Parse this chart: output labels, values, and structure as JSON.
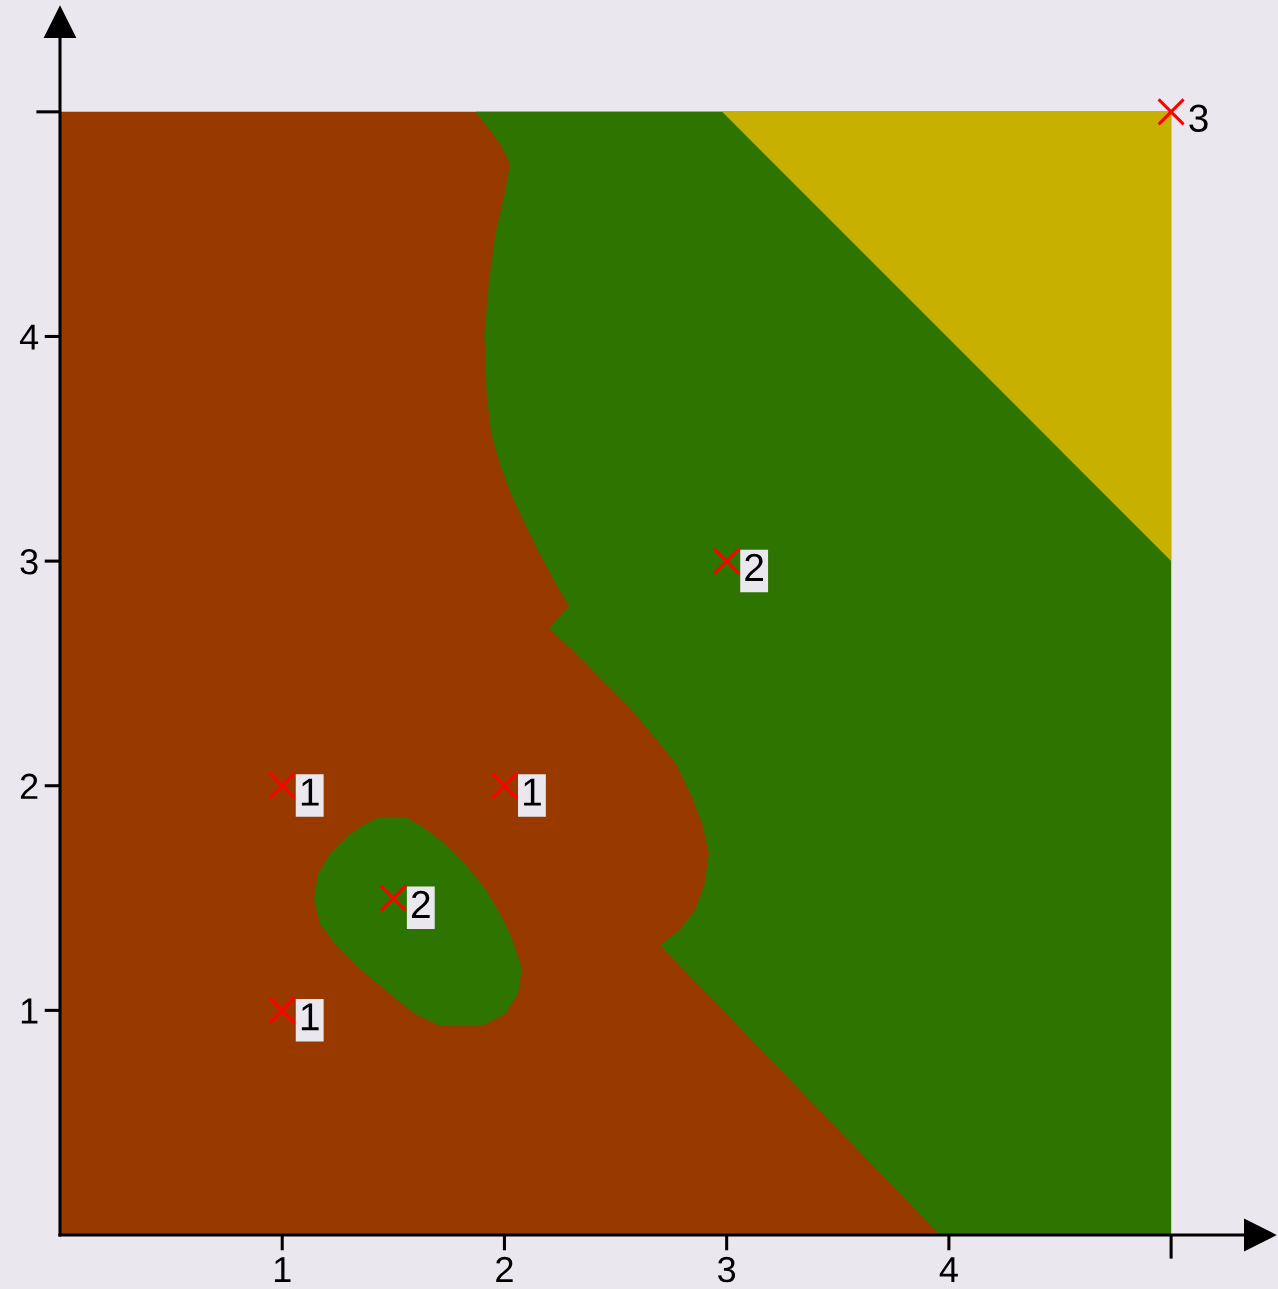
{
  "chart_data": {
    "type": "scatter",
    "x": [
      1,
      2,
      1,
      1.5,
      3,
      5
    ],
    "series": [
      {
        "values": [
          2,
          2,
          1,
          1.5,
          3,
          5
        ],
        "color": "#ff0000"
      }
    ],
    "marker": "cross",
    "xlim": [
      0,
      5.4
    ],
    "ylim": [
      0,
      5.4
    ],
    "xticks": [
      1,
      2,
      3,
      4,
      {
        "value": 5,
        "label": null
      }
    ],
    "yticks": [
      1,
      2,
      3,
      4,
      {
        "value": 5,
        "label": null
      }
    ],
    "annotations": [
      {
        "text": "1",
        "x": 1,
        "y": 2
      },
      {
        "text": "1",
        "x": 2,
        "y": 2
      },
      {
        "text": "1",
        "x": 1,
        "y": 1
      },
      {
        "text": "2",
        "x": 1.5,
        "y": 1.5
      },
      {
        "text": "2",
        "x": 3,
        "y": 3
      },
      {
        "text": "3",
        "x": 5,
        "y": 5
      }
    ]
  }
}
